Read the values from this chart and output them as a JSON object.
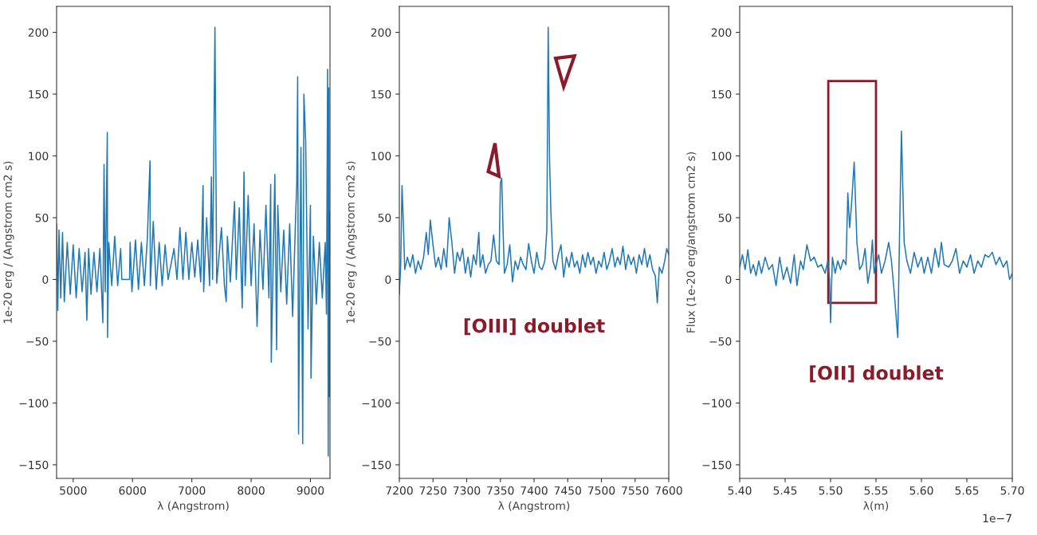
{
  "chart_data": [
    {
      "type": "line",
      "xlabel": "λ (Angstrom)",
      "ylabel": "1e-20 erg / (Angstrom cm2 s)",
      "xlim": [
        4720,
        9330
      ],
      "ylim": [
        -161,
        221
      ],
      "xticks": [
        5000,
        6000,
        7000,
        8000,
        9000
      ],
      "yticks": [
        {
          "value": -150,
          "label": "−150"
        },
        {
          "value": -100,
          "label": "−100"
        },
        {
          "value": -50,
          "label": "−50"
        },
        0,
        50,
        100,
        150,
        200
      ],
      "series": [
        {
          "color": "#1f77b4",
          "x": [
            4720,
            4740,
            4760,
            4790,
            4820,
            4850,
            4900,
            4950,
            5000,
            5050,
            5100,
            5150,
            5200,
            5230,
            5260,
            5300,
            5350,
            5400,
            5450,
            5500,
            5520,
            5540,
            5575,
            5580,
            5600,
            5650,
            5700,
            5750,
            5800,
            5820,
            5950,
            5960,
            5990,
            6050,
            6100,
            6150,
            6200,
            6250,
            6295,
            6300,
            6350,
            6400,
            6450,
            6500,
            6550,
            6600,
            6700,
            6750,
            6800,
            6850,
            6900,
            6950,
            7000,
            7050,
            7100,
            7150,
            7190,
            7200,
            7250,
            7300,
            7330,
            7350,
            7390,
            7420,
            7500,
            7550,
            7580,
            7600,
            7650,
            7700,
            7720,
            7750,
            7800,
            7850,
            7880,
            7900,
            7950,
            8000,
            8050,
            8100,
            8150,
            8200,
            8250,
            8300,
            8330,
            8340,
            8400,
            8430,
            8450,
            8500,
            8550,
            8600,
            8650,
            8700,
            8750,
            8770,
            8785,
            8800,
            8840,
            8870,
            8890,
            8920,
            8960,
            9000,
            9010,
            9050,
            9100,
            9150,
            9200,
            9250,
            9270,
            9290,
            9300,
            9310,
            9320,
            9330
          ],
          "values": [
            45,
            -25,
            40,
            -15,
            38,
            -18,
            30,
            -12,
            28,
            -15,
            25,
            -10,
            22,
            -33,
            25,
            -12,
            22,
            -10,
            25,
            -35,
            93,
            -10,
            119,
            -47,
            30,
            -5,
            35,
            -5,
            25,
            0,
            0,
            30,
            -10,
            32,
            -8,
            30,
            -5,
            33,
            96,
            -5,
            47,
            -8,
            30,
            -5,
            28,
            0,
            25,
            0,
            42,
            0,
            38,
            0,
            30,
            2,
            32,
            -2,
            76,
            -10,
            50,
            -5,
            83,
            0,
            204,
            -3,
            42,
            -5,
            -18,
            35,
            -2,
            45,
            63,
            0,
            58,
            -23,
            87,
            -5,
            68,
            -5,
            45,
            -38,
            40,
            -8,
            60,
            -15,
            77,
            -67,
            85,
            -57,
            60,
            -10,
            40,
            -20,
            45,
            -30,
            50,
            79,
            164,
            -125,
            107,
            -133,
            150,
            112,
            -40,
            60,
            -80,
            35,
            -20,
            30,
            -15,
            30,
            -28,
            170,
            -143,
            155,
            -95,
            55
          ]
        }
      ]
    },
    {
      "type": "line",
      "xlabel": "λ (Angstrom)",
      "ylabel": "1e-20 erg / (Angstrom cm2 s)",
      "xlim": [
        7200,
        7600
      ],
      "ylim": [
        -161,
        221
      ],
      "xticks": [
        7200,
        7250,
        7300,
        7350,
        7400,
        7450,
        7500,
        7550,
        7600
      ],
      "yticks": [
        {
          "value": -150,
          "label": "−150"
        },
        {
          "value": -100,
          "label": "−100"
        },
        {
          "value": -50,
          "label": "−50"
        },
        0,
        50,
        100,
        150,
        200
      ],
      "annotations": [
        "[OIII] doublet"
      ],
      "series": [
        {
          "color": "#1f77b4",
          "x": [
            7200,
            7202,
            7204,
            7206,
            7208,
            7212,
            7216,
            7220,
            7224,
            7228,
            7232,
            7236,
            7240,
            7243,
            7246,
            7250,
            7254,
            7258,
            7262,
            7266,
            7270,
            7274,
            7278,
            7282,
            7286,
            7290,
            7294,
            7298,
            7302,
            7306,
            7310,
            7314,
            7318,
            7320,
            7324,
            7328,
            7332,
            7336,
            7340,
            7344,
            7348,
            7350,
            7352,
            7354,
            7356,
            7360,
            7364,
            7368,
            7372,
            7376,
            7380,
            7384,
            7388,
            7392,
            7396,
            7400,
            7404,
            7408,
            7412,
            7416,
            7419,
            7421,
            7423,
            7425,
            7428,
            7432,
            7436,
            7440,
            7444,
            7448,
            7452,
            7456,
            7460,
            7464,
            7468,
            7472,
            7476,
            7480,
            7484,
            7488,
            7492,
            7496,
            7500,
            7504,
            7508,
            7512,
            7516,
            7520,
            7524,
            7528,
            7532,
            7536,
            7540,
            7544,
            7548,
            7552,
            7556,
            7560,
            7564,
            7568,
            7572,
            7576,
            7580,
            7583,
            7586,
            7590,
            7594,
            7597,
            7600
          ],
          "values": [
            -12,
            12,
            76,
            45,
            8,
            18,
            10,
            20,
            5,
            15,
            8,
            18,
            38,
            20,
            48,
            28,
            10,
            18,
            8,
            25,
            10,
            50,
            30,
            5,
            22,
            15,
            25,
            5,
            18,
            2,
            20,
            12,
            38,
            10,
            20,
            5,
            12,
            15,
            36,
            15,
            12,
            78,
            82,
            40,
            5,
            12,
            28,
            -2,
            15,
            8,
            18,
            12,
            8,
            29,
            15,
            5,
            22,
            10,
            8,
            15,
            40,
            204,
            98,
            55,
            15,
            8,
            20,
            28,
            2,
            18,
            10,
            22,
            10,
            15,
            5,
            20,
            10,
            22,
            12,
            18,
            5,
            15,
            10,
            22,
            8,
            15,
            25,
            10,
            18,
            12,
            27,
            8,
            20,
            12,
            18,
            5,
            20,
            12,
            25,
            10,
            20,
            8,
            3,
            -19,
            10,
            5,
            15,
            25,
            20
          ]
        }
      ]
    },
    {
      "type": "line",
      "xlabel": "λ(m)",
      "ylabel": "Flux (1e-20 erg/angstrom cm2 s)",
      "xlim": [
        5.4,
        5.7
      ],
      "ylim": [
        -161,
        221
      ],
      "xticks": [
        {
          "value": 5.4,
          "label": "5.40"
        },
        {
          "value": 5.45,
          "label": "5.45"
        },
        {
          "value": 5.5,
          "label": "5.50"
        },
        {
          "value": 5.55,
          "label": "5.55"
        },
        {
          "value": 5.6,
          "label": "5.60"
        },
        {
          "value": 5.65,
          "label": "5.65"
        },
        {
          "value": 5.7,
          "label": "5.70"
        }
      ],
      "yticks": [
        {
          "value": -150,
          "label": "−150"
        },
        {
          "value": -100,
          "label": "−100"
        },
        {
          "value": -50,
          "label": "−50"
        },
        0,
        50,
        100,
        150,
        200
      ],
      "annotations": [
        "[OII] doublet",
        "1e−7"
      ],
      "series": [
        {
          "color": "#1f77b4",
          "x": [
            5.4,
            5.403,
            5.406,
            5.409,
            5.412,
            5.415,
            5.418,
            5.421,
            5.424,
            5.428,
            5.432,
            5.436,
            5.44,
            5.444,
            5.448,
            5.452,
            5.456,
            5.46,
            5.463,
            5.467,
            5.47,
            5.474,
            5.478,
            5.482,
            5.486,
            5.49,
            5.494,
            5.497,
            5.499,
            5.5,
            5.502,
            5.505,
            5.508,
            5.511,
            5.514,
            5.517,
            5.519,
            5.521,
            5.523,
            5.526,
            5.529,
            5.532,
            5.535,
            5.538,
            5.541,
            5.544,
            5.546,
            5.548,
            5.55,
            5.553,
            5.556,
            5.56,
            5.564,
            5.567,
            5.57,
            5.574,
            5.576,
            5.578,
            5.581,
            5.584,
            5.588,
            5.592,
            5.596,
            5.6,
            5.603,
            5.607,
            5.611,
            5.615,
            5.619,
            5.622,
            5.625,
            5.63,
            5.634,
            5.638,
            5.642,
            5.646,
            5.65,
            5.654,
            5.658,
            5.662,
            5.666,
            5.67,
            5.674,
            5.678,
            5.682,
            5.686,
            5.69,
            5.694,
            5.697,
            5.7
          ],
          "values": [
            10,
            20,
            8,
            24,
            5,
            12,
            3,
            15,
            5,
            18,
            8,
            12,
            -5,
            18,
            0,
            10,
            -3,
            20,
            -5,
            15,
            8,
            28,
            15,
            18,
            10,
            12,
            5,
            15,
            0,
            -35,
            18,
            5,
            15,
            8,
            16,
            12,
            70,
            42,
            60,
            95,
            30,
            8,
            12,
            25,
            -3,
            10,
            32,
            5,
            12,
            20,
            5,
            15,
            30,
            15,
            -10,
            -47,
            40,
            120,
            30,
            15,
            5,
            22,
            10,
            18,
            5,
            18,
            5,
            25,
            10,
            30,
            12,
            10,
            15,
            25,
            5,
            15,
            10,
            20,
            5,
            15,
            10,
            20,
            18,
            22,
            12,
            18,
            10,
            15,
            0,
            5
          ]
        }
      ]
    }
  ]
}
